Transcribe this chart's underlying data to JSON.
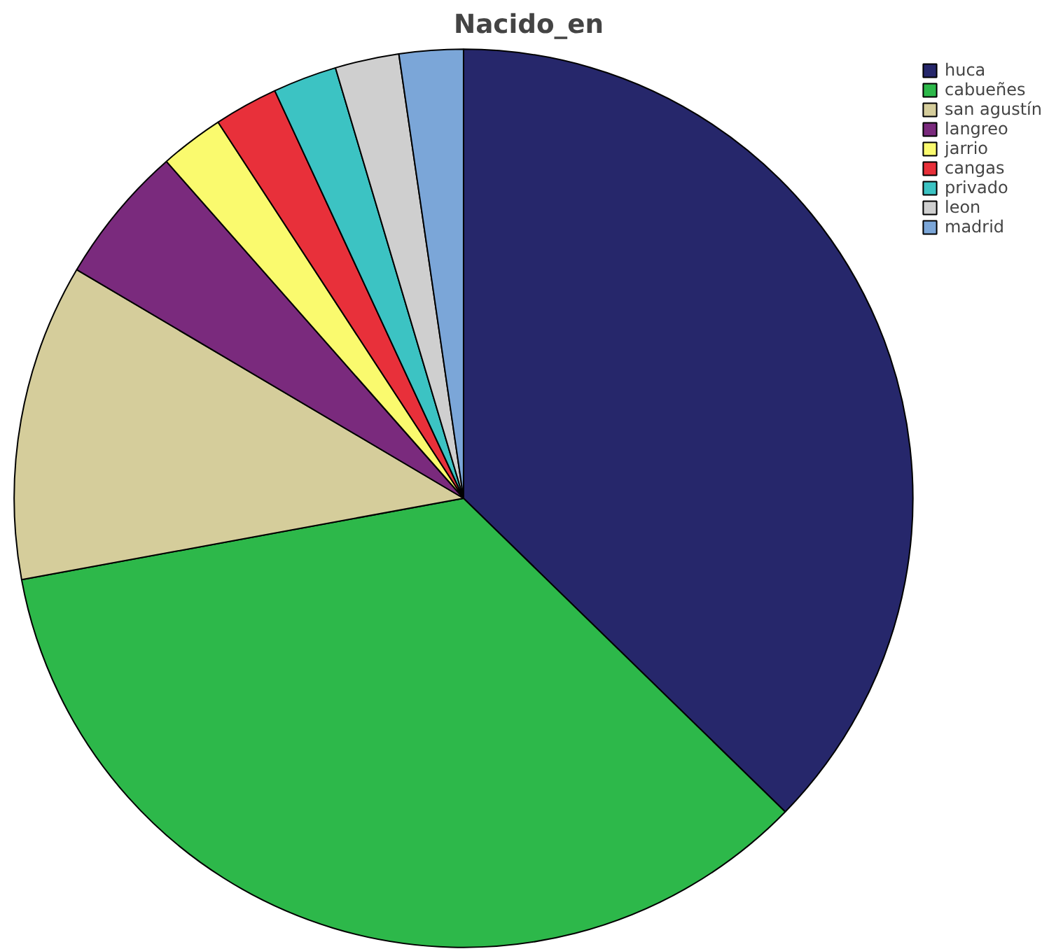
{
  "chart_data": {
    "type": "pie",
    "title": "Nacido_en",
    "categories": [
      "huca",
      "cabueñes",
      "san agustín",
      "langreo",
      "jarrio",
      "cangas",
      "privado",
      "leon",
      "madrid"
    ],
    "values": [
      37.3,
      34.8,
      11.4,
      5.0,
      2.3,
      2.3,
      2.3,
      2.3,
      2.3
    ],
    "colors": [
      "#26276b",
      "#2db84a",
      "#d5cd9b",
      "#7a2a7d",
      "#fafa6e",
      "#e8303a",
      "#3cc3c3",
      "#cfcfcf",
      "#7ba6d8"
    ],
    "legend": "top right"
  }
}
